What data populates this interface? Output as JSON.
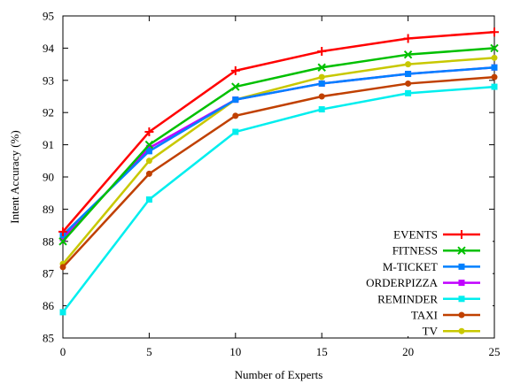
{
  "chart_data": {
    "type": "line",
    "xlabel": "Number of Experts",
    "ylabel": "Intent Accuracy (%)",
    "xlim": [
      0,
      25
    ],
    "ylim": [
      85,
      95
    ],
    "x_ticks": [
      "0",
      "5",
      "10",
      "15",
      "20",
      "25"
    ],
    "y_ticks": [
      "85",
      "86",
      "87",
      "88",
      "89",
      "90",
      "91",
      "92",
      "93",
      "94",
      "95"
    ],
    "x": [
      0,
      5,
      10,
      15,
      20,
      25
    ],
    "legend_position": "bottom-right",
    "grid": false,
    "series": [
      {
        "name": "EVENTS",
        "color": "#ff0000",
        "marker": "plus",
        "values": [
          88.3,
          91.4,
          93.3,
          93.9,
          94.3,
          94.5
        ]
      },
      {
        "name": "FITNESS",
        "color": "#00c000",
        "marker": "cross",
        "values": [
          88.0,
          91.0,
          92.8,
          93.4,
          93.8,
          94.0
        ]
      },
      {
        "name": "M-TICKET",
        "color": "#0080ff",
        "marker": "square",
        "values": [
          88.2,
          90.8,
          92.4,
          92.9,
          93.2,
          93.4
        ]
      },
      {
        "name": "ORDERPIZZA",
        "color": "#c000ff",
        "marker": "square",
        "values": [
          88.1,
          90.9,
          92.4,
          92.9,
          93.2,
          93.4
        ]
      },
      {
        "name": "REMINDER",
        "color": "#00eeee",
        "marker": "square",
        "values": [
          85.8,
          89.3,
          91.4,
          92.1,
          92.6,
          92.8
        ]
      },
      {
        "name": "TAXI",
        "color": "#c04000",
        "marker": "circle",
        "values": [
          87.2,
          90.1,
          91.9,
          92.5,
          92.9,
          93.1
        ]
      },
      {
        "name": "TV",
        "color": "#c8c800",
        "marker": "circle",
        "values": [
          87.3,
          90.5,
          92.4,
          93.1,
          93.5,
          93.7
        ]
      }
    ]
  }
}
